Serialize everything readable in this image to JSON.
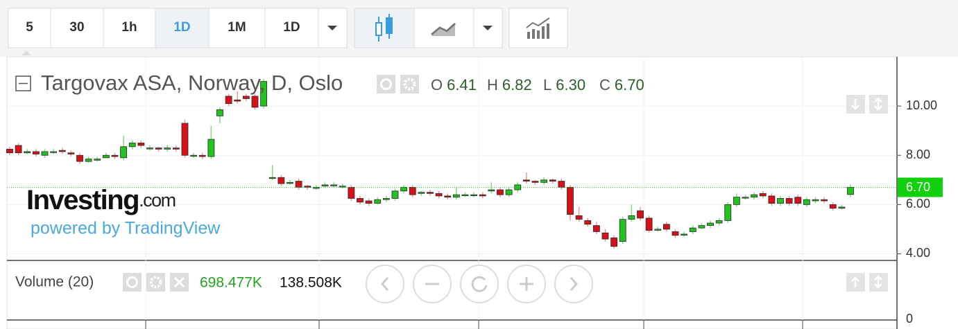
{
  "toolbar": {
    "intervals": [
      "5",
      "30",
      "1h",
      "1D",
      "1M",
      "1D"
    ],
    "active_index": 3
  },
  "chart_data": {
    "type": "candlestick",
    "title": "Targovax ASA, Norway, D, Oslo",
    "legend": [
      {
        "label": "O",
        "value": "6.41"
      },
      {
        "label": "H",
        "value": "6.82"
      },
      {
        "label": "L",
        "value": "6.30"
      },
      {
        "label": "C",
        "value": "6.70"
      }
    ],
    "open": [
      8.25,
      8.4,
      8.1,
      8.15,
      8.0,
      8.15,
      8.2,
      8.1,
      8.0,
      7.75,
      7.8,
      7.9,
      8.0,
      7.9,
      8.35,
      8.5,
      8.3,
      8.3,
      8.25,
      8.3,
      9.3,
      8.0,
      8.0,
      7.95,
      9.6,
      10.4,
      10.25,
      10.4,
      10.4,
      10.0,
      7.1,
      7.1,
      6.9,
      6.95,
      6.75,
      6.7,
      6.75,
      6.8,
      6.75,
      6.7,
      6.25,
      6.15,
      6.05,
      6.2,
      6.25,
      6.55,
      6.7,
      6.45,
      6.5,
      6.45,
      6.35,
      6.3,
      6.4,
      6.4,
      6.4,
      6.55,
      6.6,
      6.4,
      6.6,
      7.0,
      6.95,
      6.9,
      7.0,
      6.95,
      6.7,
      5.55,
      5.35,
      5.15,
      4.85,
      4.65,
      4.5,
      5.4,
      5.75,
      5.45,
      5.0,
      5.2,
      4.9,
      4.8,
      4.9,
      5.05,
      5.15,
      5.25,
      5.35,
      6.0,
      6.3,
      6.3,
      6.45,
      6.35,
      6.05,
      6.25,
      6.3,
      6.0,
      6.15,
      6.2,
      6.0,
      5.85,
      6.41
    ],
    "high": [
      8.35,
      8.5,
      8.25,
      8.25,
      8.25,
      8.25,
      8.3,
      8.2,
      8.1,
      7.95,
      7.95,
      8.1,
      8.1,
      8.8,
      8.6,
      8.6,
      8.4,
      8.35,
      8.4,
      8.4,
      9.45,
      8.1,
      8.1,
      9.2,
      9.95,
      10.5,
      10.6,
      10.5,
      10.5,
      11.1,
      7.6,
      7.2,
      7.0,
      7.05,
      6.8,
      6.8,
      6.9,
      6.9,
      6.85,
      6.8,
      6.35,
      6.25,
      6.3,
      6.35,
      6.65,
      6.8,
      6.8,
      6.55,
      6.6,
      6.55,
      6.45,
      6.7,
      6.5,
      6.5,
      6.5,
      6.9,
      6.7,
      6.7,
      6.9,
      7.3,
      7.0,
      7.1,
      7.05,
      7.05,
      6.8,
      5.9,
      5.45,
      5.3,
      5.0,
      4.75,
      5.5,
      6.0,
      5.9,
      5.55,
      5.1,
      5.3,
      5.0,
      4.9,
      5.15,
      5.25,
      5.35,
      5.45,
      6.1,
      6.45,
      6.4,
      6.5,
      6.55,
      6.45,
      6.35,
      6.35,
      6.4,
      6.3,
      6.3,
      6.3,
      6.1,
      6.0,
      6.82
    ],
    "low": [
      8.0,
      8.0,
      8.05,
      7.95,
      7.9,
      8.05,
      8.05,
      7.95,
      7.65,
      7.7,
      7.75,
      7.9,
      7.85,
      7.8,
      8.25,
      8.3,
      8.2,
      8.15,
      8.15,
      8.15,
      7.9,
      7.9,
      7.85,
      7.85,
      9.3,
      10.0,
      10.1,
      10.2,
      9.85,
      9.9,
      7.0,
      6.75,
      6.8,
      6.6,
      6.6,
      6.6,
      6.7,
      6.7,
      6.65,
      6.15,
      6.0,
      5.95,
      6.0,
      6.1,
      6.15,
      6.45,
      6.3,
      6.35,
      6.35,
      6.25,
      6.2,
      6.2,
      6.3,
      6.3,
      6.25,
      6.45,
      6.3,
      6.3,
      6.5,
      6.85,
      6.8,
      6.8,
      6.85,
      6.6,
      5.35,
      5.3,
      5.1,
      4.8,
      4.5,
      4.2,
      4.4,
      5.3,
      5.35,
      4.85,
      4.9,
      4.9,
      4.65,
      4.7,
      4.8,
      5.0,
      5.05,
      5.15,
      5.25,
      5.9,
      6.2,
      6.2,
      6.25,
      5.95,
      5.95,
      5.95,
      5.95,
      5.9,
      6.05,
      6.05,
      5.75,
      5.8,
      6.3
    ],
    "close": [
      8.1,
      8.1,
      8.15,
      8.05,
      8.15,
      8.15,
      8.15,
      8.05,
      7.75,
      7.85,
      7.85,
      8.0,
      7.95,
      8.35,
      8.5,
      8.4,
      8.3,
      8.25,
      8.3,
      8.25,
      8.0,
      8.0,
      7.95,
      8.65,
      9.85,
      10.1,
      10.2,
      10.3,
      9.95,
      11.0,
      7.1,
      6.85,
      6.9,
      6.7,
      6.7,
      6.7,
      6.8,
      6.8,
      6.75,
      6.25,
      6.1,
      6.05,
      6.2,
      6.25,
      6.55,
      6.7,
      6.4,
      6.5,
      6.45,
      6.35,
      6.3,
      6.4,
      6.4,
      6.4,
      6.35,
      6.6,
      6.4,
      6.6,
      6.8,
      6.95,
      6.9,
      7.0,
      6.95,
      6.7,
      5.6,
      5.4,
      5.2,
      4.9,
      4.6,
      4.3,
      5.4,
      5.55,
      5.45,
      4.95,
      5.0,
      5.0,
      4.75,
      4.8,
      5.05,
      5.15,
      5.25,
      5.35,
      6.0,
      6.3,
      6.3,
      6.4,
      6.35,
      6.05,
      6.25,
      6.05,
      6.05,
      6.2,
      6.2,
      6.15,
      5.85,
      5.9,
      6.7
    ],
    "ylim": [
      3.76,
      12.0
    ],
    "yticks": [
      {
        "value": 4,
        "label": "4.00"
      },
      {
        "value": 6,
        "label": "6.00"
      },
      {
        "value": 8,
        "label": "8.00"
      },
      {
        "value": 10,
        "label": "10.00"
      }
    ],
    "last_price": {
      "value": 6.7,
      "label": "6.70"
    },
    "up_color": "#22c21f",
    "down_color": "#d5121a"
  },
  "volume": {
    "title": "Volume (20)",
    "values": [
      "698.477K",
      "138.508K"
    ],
    "yticks": [
      0
    ]
  },
  "watermark": {
    "brand": "Investing",
    "suffix": ".com",
    "tagline": "powered by TradingView"
  }
}
